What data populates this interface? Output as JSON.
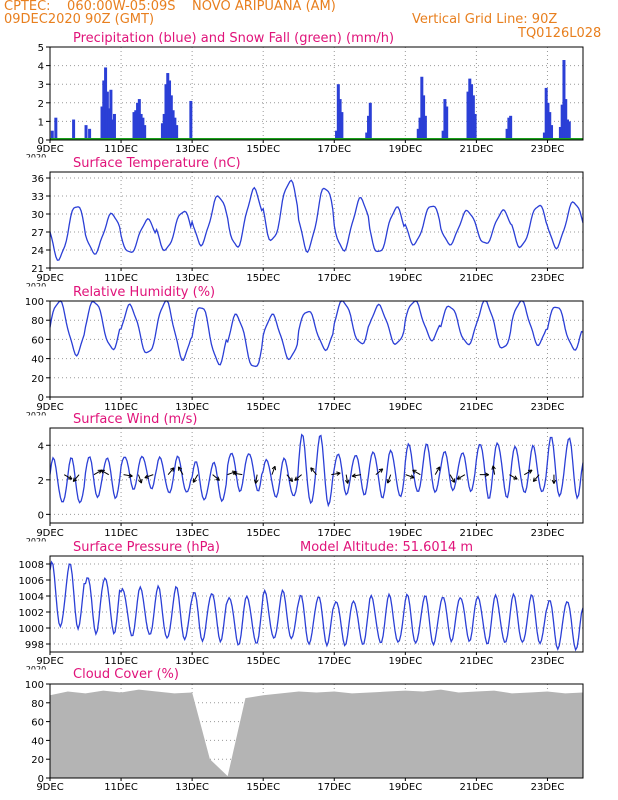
{
  "header": {
    "line1": "CPTEC:    060:00W-05:09S    NOVO ARIPUANA (AM)",
    "line2": "09DEC2020 90Z (GMT)",
    "grid_note": "Vertical Grid Line: 90Z",
    "code": "TQ0126L028"
  },
  "x_ticks": [
    "9DEC",
    "11DEC",
    "13DEC",
    "15DEC",
    "17DEC",
    "19DEC",
    "21DEC",
    "23DEC"
  ],
  "year_label": "2020",
  "colors": {
    "title": "#e0137a",
    "header": "#e87f1e",
    "series": "#2b3fd6",
    "snow": "#1aa01a",
    "cloud": "#b4b4b4",
    "grid": "#999999"
  },
  "chart_data": [
    {
      "type": "bar",
      "title": "Precipitation (blue) and Snow Fall (green) (mm/h)",
      "ylim": [
        0,
        5
      ],
      "yticks": [
        0,
        1,
        2,
        3,
        4,
        5
      ],
      "x_days": [
        0,
        15
      ],
      "series": [
        {
          "name": "Precipitation",
          "x": [
            0.05,
            0.15,
            0.65,
            1.0,
            1.1,
            1.45,
            1.5,
            1.55,
            1.6,
            1.65,
            1.7,
            1.75,
            1.8,
            2.35,
            2.4,
            2.45,
            2.5,
            2.55,
            2.6,
            2.65,
            3.15,
            3.2,
            3.25,
            3.3,
            3.35,
            3.4,
            3.45,
            3.5,
            3.55,
            3.95,
            8.05,
            8.1,
            8.15,
            8.2,
            8.9,
            8.95,
            9.0,
            10.35,
            10.4,
            10.45,
            10.5,
            10.55,
            11.05,
            11.1,
            11.15,
            11.75,
            11.8,
            11.85,
            11.9,
            11.95,
            12.85,
            12.9,
            12.95,
            13.9,
            13.95,
            14.0,
            14.05,
            14.1,
            14.35,
            14.4,
            14.45,
            14.5,
            14.55,
            14.6
          ],
          "values": [
            0.5,
            1.2,
            1.1,
            0.8,
            0.6,
            1.8,
            3.2,
            3.9,
            2.6,
            1.7,
            2.7,
            1.1,
            1.4,
            1.5,
            1.6,
            2.0,
            2.2,
            1.4,
            1.2,
            0.8,
            0.9,
            1.4,
            3.0,
            3.6,
            3.2,
            2.4,
            1.6,
            1.2,
            0.8,
            2.1,
            0.5,
            3.0,
            2.2,
            1.5,
            0.4,
            1.3,
            2.0,
            0.6,
            1.2,
            3.4,
            2.4,
            1.3,
            0.5,
            2.2,
            1.8,
            2.6,
            3.3,
            3.0,
            2.4,
            1.4,
            0.6,
            1.2,
            1.3,
            0.4,
            2.8,
            2.0,
            1.5,
            0.8,
            0.7,
            1.9,
            4.3,
            2.2,
            1.1,
            1.0
          ]
        },
        {
          "name": "Snow Fall",
          "values": [
            0
          ]
        }
      ]
    },
    {
      "type": "line",
      "title": "Surface Temperature (nC)",
      "ylim": [
        21,
        37
      ],
      "yticks": [
        21,
        24,
        27,
        30,
        33,
        36
      ],
      "x_days": [
        0,
        15
      ],
      "series": [
        {
          "name": "Temperature",
          "period": 1,
          "phase": 0.75,
          "daily": [
            [
              31.5,
              22.5
            ],
            [
              30.0,
              23.5
            ],
            [
              29.0,
              23.5
            ],
            [
              30.5,
              24.0
            ],
            [
              33.0,
              25.0
            ],
            [
              34.0,
              24.5
            ],
            [
              35.5,
              25.5
            ],
            [
              34.5,
              24.0
            ],
            [
              32.5,
              24.0
            ],
            [
              31.0,
              23.5
            ],
            [
              31.5,
              25.0
            ],
            [
              30.5,
              25.0
            ],
            [
              30.5,
              25.0
            ],
            [
              31.5,
              24.5
            ],
            [
              32.0,
              24.5
            ],
            [
              32.0,
              25.0
            ]
          ]
        }
      ]
    },
    {
      "type": "line",
      "title": "Relative Humidity (%)",
      "ylim": [
        0,
        100
      ],
      "yticks": [
        0,
        20,
        40,
        60,
        80,
        100
      ],
      "x_days": [
        0,
        15
      ],
      "series": [
        {
          "name": "Relative Humidity",
          "period": 1,
          "phase": 0.25,
          "daily": [
            [
              100,
              45
            ],
            [
              100,
              50
            ],
            [
              95,
              45
            ],
            [
              100,
              40
            ],
            [
              95,
              35
            ],
            [
              85,
              30
            ],
            [
              85,
              40
            ],
            [
              90,
              50
            ],
            [
              100,
              55
            ],
            [
              95,
              55
            ],
            [
              100,
              60
            ],
            [
              95,
              55
            ],
            [
              100,
              50
            ],
            [
              100,
              55
            ],
            [
              95,
              50
            ],
            [
              90,
              45
            ]
          ]
        }
      ]
    },
    {
      "type": "line",
      "title": "Surface Wind (m/s)",
      "ylim": [
        -0.5,
        5
      ],
      "yticks": [
        0,
        2,
        4
      ],
      "x_days": [
        0,
        15
      ],
      "series": [
        {
          "name": "Wind speed",
          "period": 0.5,
          "phase": 0.1,
          "daily": [
            [
              3.2,
              0.6
            ],
            [
              3.3,
              1.0
            ],
            [
              3.4,
              1.5
            ],
            [
              3.3,
              1.2
            ],
            [
              3.0,
              0.8
            ],
            [
              3.6,
              1.4
            ],
            [
              3.2,
              1.0
            ],
            [
              4.5,
              0.5
            ],
            [
              3.5,
              1.2
            ],
            [
              3.7,
              1.0
            ],
            [
              4.0,
              1.2
            ],
            [
              3.6,
              1.4
            ],
            [
              4.2,
              1.0
            ],
            [
              3.9,
              1.2
            ],
            [
              4.4,
              1.0
            ],
            [
              4.0,
              1.1
            ]
          ]
        }
      ],
      "arrow_angles": [
        120,
        220,
        60,
        300,
        100,
        160,
        250,
        40,
        330,
        210,
        130,
        70,
        280,
        190,
        20,
        140,
        230,
        320,
        80,
        170,
        260,
        50,
        200,
        110,
        300,
        30,
        150,
        240,
        90,
        350,
        120,
        60,
        220,
        180
      ]
    },
    {
      "type": "line",
      "title": "Surface Pressure (hPa)",
      "annotation": "Model Altitude: 51.6014  m",
      "ylim": [
        997,
        1009
      ],
      "yticks": [
        998,
        1000,
        1002,
        1004,
        1006,
        1008
      ],
      "x_days": [
        0,
        15
      ],
      "series": [
        {
          "name": "Pressure",
          "period": 0.5,
          "phase": 0.05,
          "daily": [
            [
              1008,
              1000
            ],
            [
              1006.5,
              999.5
            ],
            [
              1005,
              999
            ],
            [
              1005,
              998.5
            ],
            [
              1004.5,
              998.5
            ],
            [
              1004,
              998
            ],
            [
              1004.5,
              998.5
            ],
            [
              1004,
              998
            ],
            [
              1003.5,
              998
            ],
            [
              1004,
              998
            ],
            [
              1004,
              998
            ],
            [
              1004,
              998.5
            ],
            [
              1004,
              998
            ],
            [
              1004,
              998
            ],
            [
              1003.5,
              997.5
            ],
            [
              1003,
              998
            ]
          ]
        }
      ]
    },
    {
      "type": "area",
      "title": "Cloud Cover (%)",
      "ylim": [
        0,
        100
      ],
      "yticks": [
        0,
        20,
        40,
        60,
        80,
        100
      ],
      "x_days": [
        0,
        15
      ],
      "series": [
        {
          "name": "Cloud Cover",
          "x": [
            0,
            0.5,
            1,
            1.5,
            2,
            2.5,
            3,
            3.5,
            4,
            4.5,
            5,
            5.5,
            6,
            6.5,
            7,
            7.5,
            8,
            8.5,
            9,
            9.5,
            10,
            10.5,
            11,
            11.5,
            12,
            12.5,
            13,
            13.5,
            14,
            14.5,
            15
          ],
          "values": [
            88,
            92,
            90,
            93,
            91,
            94,
            92,
            90,
            91,
            20,
            2,
            85,
            88,
            90,
            92,
            91,
            92,
            90,
            91,
            92,
            93,
            92,
            94,
            91,
            92,
            93,
            90,
            91,
            92,
            90,
            91
          ]
        }
      ]
    }
  ]
}
